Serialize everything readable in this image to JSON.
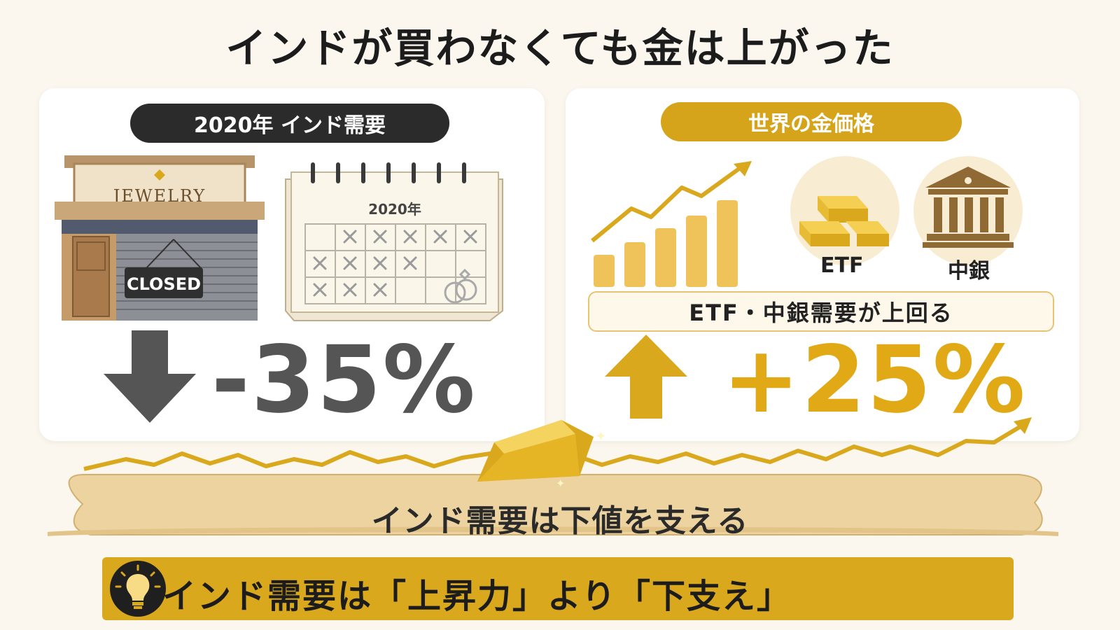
{
  "title": "インドが買わなくても金は上がった",
  "left_panel": {
    "header": "2020年 インド需要",
    "shop_sign": "JEWELRY",
    "closed_sign": "CLOSED",
    "calendar_year": "2020年",
    "change": "-35%"
  },
  "right_panel": {
    "header": "世界の金価格",
    "etf_label": "ETF",
    "central_bank_label": "中銀",
    "demand_note": "ETF・中銀需要が上回る",
    "change": "+25%"
  },
  "cushion_text": "インド需要は下値を支える",
  "bottom_message": "インド需要は「上昇力」より「下支え」",
  "colors": {
    "gold": "#d9a81c",
    "dark": "#2b2b2b",
    "background": "#fbf7ee"
  }
}
